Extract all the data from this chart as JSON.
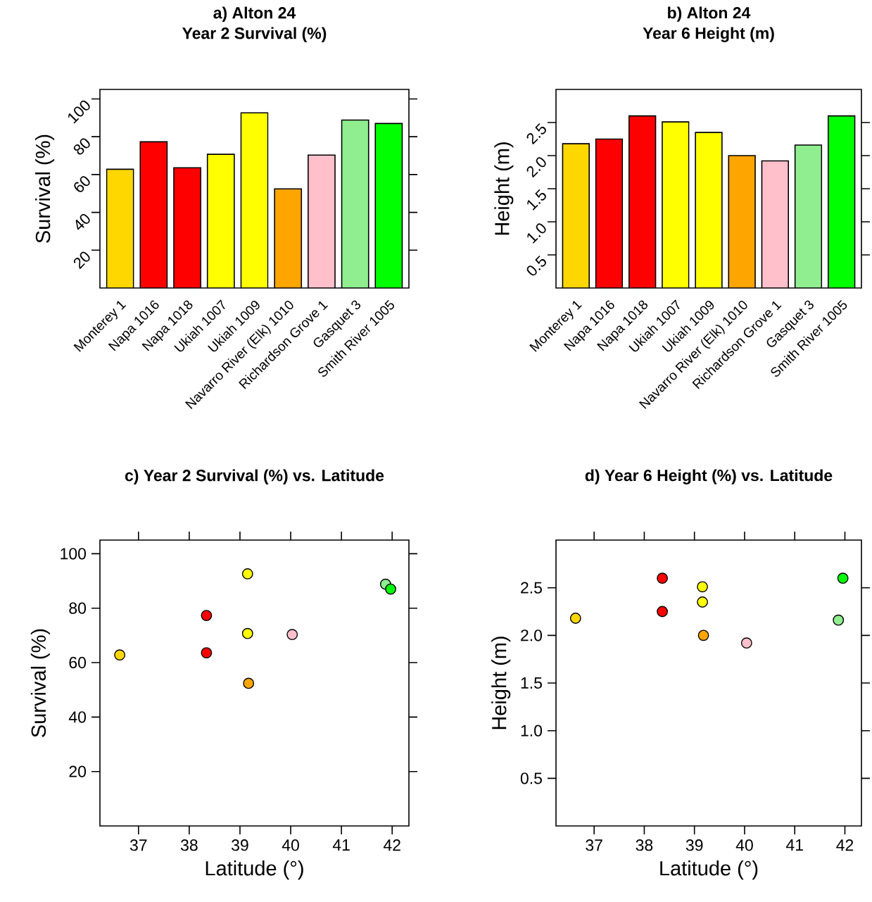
{
  "chart_data": [
    {
      "type": "bar",
      "title": "a) Alton 24",
      "subtitle": "Year 2 Survival (%)",
      "ylabel": "Survival (%)",
      "categories": [
        "Monterey 1",
        "Napa 1016",
        "Napa 1018",
        "Ukiah 1007",
        "Ukiah 1009",
        "Navarro River (Elk) 1010",
        "Richardson Grove 1",
        "Gasquet 3",
        "Smith River 1005"
      ],
      "values": [
        62.8,
        77.3,
        63.6,
        70.7,
        92.6,
        52.4,
        70.3,
        88.8,
        87.0
      ],
      "colors": [
        "#ffd700",
        "#ff0000",
        "#ff0000",
        "#ffff00",
        "#ffff00",
        "#ffa500",
        "#ffc0cb",
        "#90ee90",
        "#00ff00"
      ],
      "ylim": [
        0,
        105
      ],
      "yticks": [
        20,
        40,
        60,
        80,
        100
      ]
    },
    {
      "type": "bar",
      "title": "b) Alton 24",
      "subtitle": "Year 6 Height (m)",
      "ylabel": "Height (m)",
      "categories": [
        "Monterey 1",
        "Napa 1016",
        "Napa 1018",
        "Ukiah 1007",
        "Ukiah 1009",
        "Navarro River (Elk) 1010",
        "Richardson Grove 1",
        "Gasquet 3",
        "Smith River 1005"
      ],
      "values": [
        2.18,
        2.25,
        2.6,
        2.51,
        2.35,
        2.0,
        1.92,
        2.16,
        2.6
      ],
      "colors": [
        "#ffd700",
        "#ff0000",
        "#ff0000",
        "#ffff00",
        "#ffff00",
        "#ffa500",
        "#ffc0cb",
        "#90ee90",
        "#00ff00"
      ],
      "ylim": [
        0,
        3.0
      ],
      "yticks": [
        {
          "value": 0.5,
          "label": "0.5"
        },
        {
          "value": 1.0,
          "label": "1.0"
        },
        {
          "value": 1.5,
          "label": "1.5"
        },
        {
          "value": 2.0,
          "label": "2.0"
        },
        {
          "value": 2.5,
          "label": "2.5"
        }
      ]
    },
    {
      "type": "scatter",
      "title": "c) Year 2 Survival (%) vs. Latitude",
      "xlabel": "Latitude (°)",
      "ylabel": "Survival (%)",
      "x": [
        36.63,
        38.34,
        38.34,
        39.15,
        39.15,
        39.17,
        40.03,
        41.87,
        41.97
      ],
      "values": [
        62.8,
        77.3,
        63.6,
        70.7,
        92.6,
        52.4,
        70.3,
        88.8,
        87.0
      ],
      "colors": [
        "#ffd700",
        "#ff0000",
        "#ff0000",
        "#ffff00",
        "#ffff00",
        "#ffa500",
        "#ffc0cb",
        "#90ee90",
        "#00ff00"
      ],
      "marker": "circle",
      "xlim": [
        36.24,
        42.33
      ],
      "ylim": [
        0,
        105
      ],
      "xticks": [
        37,
        38,
        39,
        40,
        41,
        42
      ],
      "yticks": [
        20,
        40,
        60,
        80,
        100
      ]
    },
    {
      "type": "scatter",
      "title": "d) Year 6 Height (%) vs. Latitude",
      "xlabel": "Latitude (°)",
      "ylabel": "Height (m)",
      "x": [
        36.63,
        38.36,
        38.36,
        39.16,
        39.16,
        39.18,
        40.04,
        41.87,
        41.96
      ],
      "values": [
        2.18,
        2.25,
        2.6,
        2.51,
        2.35,
        2.0,
        1.92,
        2.16,
        2.6
      ],
      "colors": [
        "#ffd700",
        "#ff0000",
        "#ff0000",
        "#ffff00",
        "#ffff00",
        "#ffa500",
        "#ffc0cb",
        "#90ee90",
        "#00ff00"
      ],
      "marker": "circle",
      "xlim": [
        36.24,
        42.33
      ],
      "ylim": [
        0,
        3.0
      ],
      "xticks": [
        37,
        38,
        39,
        40,
        41,
        42
      ],
      "yticks": [
        {
          "value": 0.5,
          "label": "0.5"
        },
        {
          "value": 1.0,
          "label": "1.0"
        },
        {
          "value": 1.5,
          "label": "1.5"
        },
        {
          "value": 2.0,
          "label": "2.0"
        },
        {
          "value": 2.5,
          "label": "2.5"
        }
      ]
    }
  ]
}
